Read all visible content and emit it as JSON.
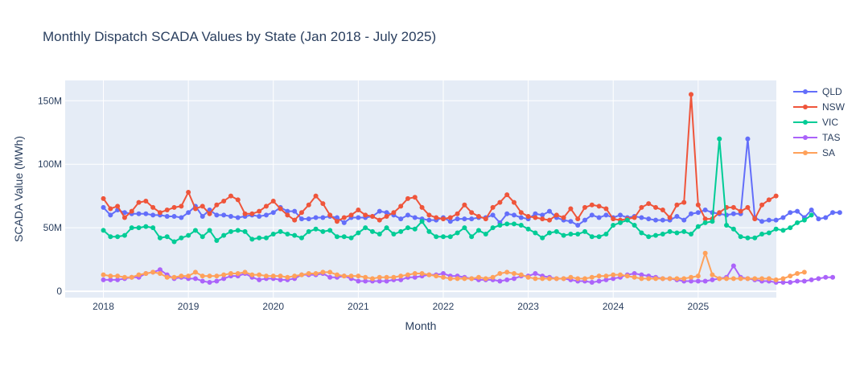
{
  "chart_data": {
    "type": "line",
    "title": "Monthly Dispatch SCADA Values by State (Jan 2018 - July 2025)",
    "xlabel": "Month",
    "ylabel": "SCADA Value (MWh)",
    "x_start": "2018-01",
    "x_ticks": [
      "2018",
      "2019",
      "2020",
      "2021",
      "2022",
      "2023",
      "2024",
      "2025"
    ],
    "y_ticks": [
      "0",
      "50M",
      "100M",
      "150M"
    ],
    "y_range_mwh": [
      -5000000,
      166000000
    ],
    "x_range_years": [
      2017.55,
      2025.92
    ],
    "grid": true,
    "legend_position": "right",
    "series": [
      {
        "name": "QLD",
        "color": "#636efa",
        "values_millions": [
          66,
          60,
          64,
          62,
          61,
          61,
          61,
          60,
          60,
          59,
          59,
          58,
          62,
          67,
          59,
          64,
          60,
          60,
          59,
          58,
          59,
          60,
          59,
          60,
          62,
          66,
          63,
          63,
          57,
          57,
          58,
          58,
          59,
          58,
          54,
          58,
          58,
          58,
          59,
          63,
          62,
          60,
          57,
          60,
          58,
          57,
          56,
          56,
          58,
          55,
          57,
          57,
          57,
          58,
          58,
          60,
          54,
          61,
          60,
          58,
          57,
          61,
          60,
          63,
          58,
          56,
          55,
          52,
          56,
          60,
          58,
          60,
          58,
          60,
          58,
          59,
          58,
          57,
          56,
          56,
          56,
          59,
          56,
          61,
          62,
          64,
          62,
          61,
          60,
          61,
          61,
          120,
          58,
          55,
          56,
          56,
          58,
          62,
          63,
          58,
          64,
          57,
          58,
          62,
          62
        ]
      },
      {
        "name": "NSW",
        "color": "#ef553b",
        "values_millions": [
          73,
          65,
          67,
          58,
          63,
          70,
          71,
          66,
          62,
          64,
          66,
          67,
          78,
          65,
          67,
          61,
          68,
          71,
          75,
          72,
          61,
          61,
          63,
          67,
          71,
          65,
          60,
          56,
          62,
          68,
          75,
          69,
          60,
          55,
          58,
          60,
          64,
          60,
          59,
          56,
          59,
          62,
          67,
          73,
          74,
          66,
          60,
          58,
          57,
          58,
          61,
          68,
          62,
          59,
          57,
          66,
          70,
          76,
          70,
          62,
          59,
          58,
          57,
          56,
          60,
          58,
          65,
          57,
          66,
          68,
          67,
          65,
          57,
          56,
          57,
          58,
          66,
          69,
          66,
          64,
          58,
          68,
          70,
          155,
          68,
          57,
          57,
          62,
          66,
          66,
          63,
          66,
          57,
          68,
          72,
          75
        ]
      },
      {
        "name": "VIC",
        "color": "#00cc96",
        "values_millions": [
          48,
          43,
          43,
          44,
          50,
          50,
          51,
          50,
          42,
          43,
          39,
          42,
          44,
          48,
          43,
          48,
          40,
          44,
          47,
          48,
          47,
          41,
          42,
          42,
          45,
          47,
          45,
          44,
          42,
          47,
          49,
          47,
          48,
          43,
          43,
          42,
          46,
          50,
          47,
          45,
          50,
          45,
          47,
          50,
          49,
          55,
          47,
          43,
          43,
          43,
          46,
          50,
          43,
          48,
          45,
          50,
          52,
          53,
          53,
          52,
          49,
          46,
          42,
          46,
          47,
          44,
          45,
          45,
          47,
          43,
          43,
          45,
          52,
          54,
          56,
          52,
          46,
          43,
          44,
          45,
          47,
          46,
          47,
          45,
          51,
          54,
          55,
          120,
          52,
          49,
          43,
          42,
          42,
          45,
          46,
          49,
          48,
          50,
          54,
          56,
          60
        ]
      },
      {
        "name": "TAS",
        "color": "#ab63fa",
        "values_millions": [
          9,
          9,
          9,
          10,
          11,
          11,
          14,
          15,
          17,
          13,
          10,
          11,
          10,
          10,
          8,
          7,
          8,
          10,
          12,
          12,
          14,
          11,
          9,
          10,
          10,
          9,
          9,
          10,
          13,
          13,
          13,
          14,
          11,
          11,
          12,
          10,
          8,
          8,
          8,
          8,
          8,
          9,
          9,
          11,
          11,
          12,
          13,
          13,
          14,
          12,
          12,
          11,
          10,
          9,
          9,
          9,
          8,
          9,
          10,
          12,
          12,
          14,
          12,
          11,
          10,
          10,
          9,
          8,
          8,
          7,
          8,
          9,
          10,
          11,
          13,
          14,
          13,
          12,
          11,
          10,
          10,
          9,
          8,
          8,
          8,
          8,
          9,
          10,
          11,
          20,
          11,
          10,
          9,
          8,
          8,
          7,
          7,
          7,
          8,
          8,
          9,
          10,
          11,
          11
        ]
      },
      {
        "name": "SA",
        "color": "#ffa15a",
        "values_millions": [
          13,
          12,
          12,
          11,
          11,
          13,
          14,
          15,
          14,
          11,
          11,
          12,
          12,
          15,
          12,
          12,
          12,
          13,
          14,
          14,
          15,
          13,
          13,
          12,
          12,
          12,
          11,
          12,
          13,
          14,
          14,
          15,
          15,
          13,
          12,
          12,
          12,
          11,
          10,
          11,
          11,
          11,
          12,
          13,
          14,
          14,
          13,
          12,
          11,
          10,
          10,
          10,
          10,
          11,
          10,
          11,
          14,
          15,
          14,
          13,
          11,
          10,
          10,
          10,
          10,
          10,
          11,
          10,
          10,
          11,
          12,
          12,
          13,
          13,
          12,
          11,
          10,
          10,
          10,
          10,
          10,
          10,
          10,
          11,
          12,
          30,
          13,
          10,
          10,
          10,
          10,
          10,
          10,
          10,
          10,
          9,
          10,
          12,
          14,
          15
        ]
      }
    ]
  }
}
